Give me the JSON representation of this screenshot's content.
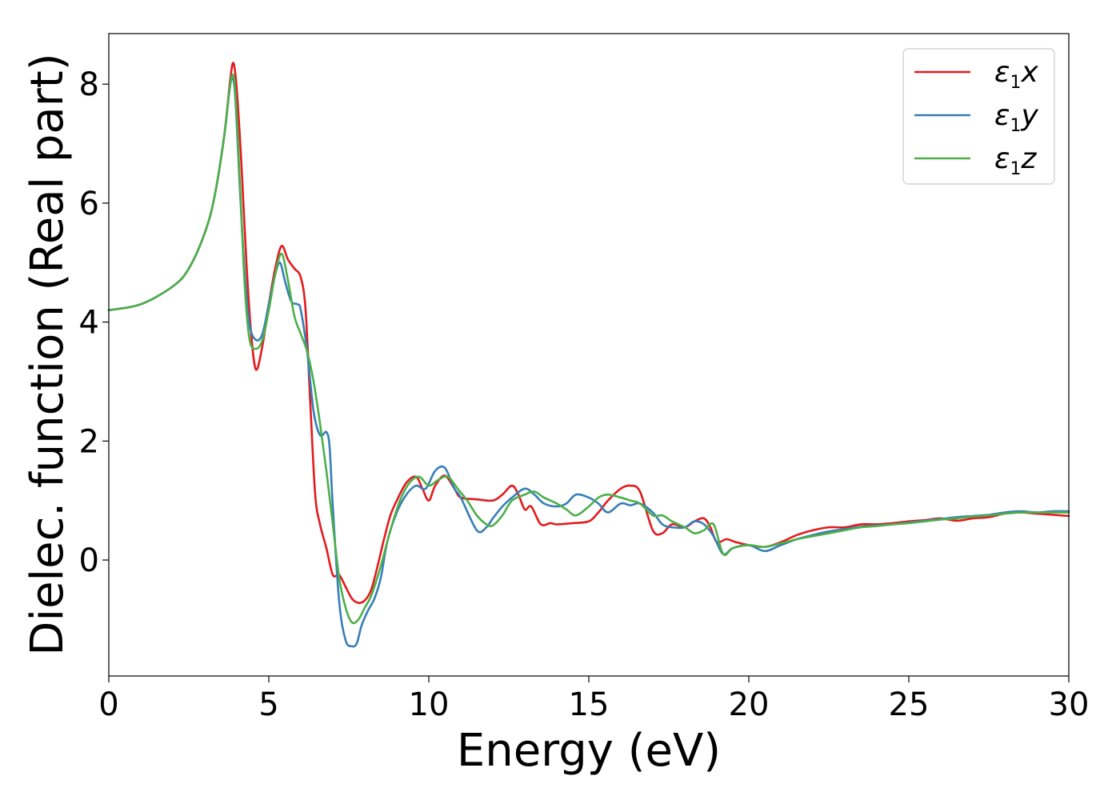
{
  "chart_data": {
    "type": "line",
    "title": "",
    "xlabel": "Energy (eV)",
    "ylabel": "Dielec. function (Real part)",
    "xlim": [
      0,
      30
    ],
    "ylim": [
      -1.95,
      8.85
    ],
    "xticks": [
      0,
      5,
      10,
      15,
      20,
      25,
      30
    ],
    "yticks": [
      0,
      2,
      4,
      6,
      8
    ],
    "xtick_labels": [
      "0",
      "5",
      "10",
      "15",
      "20",
      "25",
      "30"
    ],
    "ytick_labels": [
      "0",
      "2",
      "4",
      "6",
      "8"
    ],
    "grid": false,
    "legend": "top-right",
    "series": [
      {
        "name": "ε1x",
        "legend_symbol": "ε",
        "legend_sub": "1",
        "legend_var": "x",
        "color": "#e41a1c",
        "x": [
          0,
          1,
          2,
          2.5,
          3,
          3.3,
          3.6,
          3.8,
          3.9,
          4.0,
          4.15,
          4.3,
          4.45,
          4.6,
          4.8,
          5.0,
          5.2,
          5.4,
          5.6,
          5.8,
          6.0,
          6.15,
          6.3,
          6.45,
          6.6,
          6.8,
          7.0,
          7.2,
          7.4,
          7.6,
          7.8,
          8.0,
          8.2,
          8.4,
          8.6,
          8.8,
          9.0,
          9.3,
          9.6,
          9.8,
          10.0,
          10.2,
          10.5,
          10.8,
          11.0,
          11.5,
          12.0,
          12.3,
          12.6,
          12.8,
          13.0,
          13.2,
          13.5,
          13.8,
          14.0,
          14.5,
          15.0,
          15.3,
          15.6,
          16.0,
          16.3,
          16.6,
          17.0,
          17.3,
          17.6,
          18.0,
          18.3,
          18.6,
          18.8,
          19.0,
          19.3,
          19.6,
          20.0,
          20.5,
          21.0,
          21.5,
          22.0,
          22.5,
          23.0,
          23.5,
          24.0,
          24.5,
          25.0,
          25.5,
          26.0,
          26.5,
          27.0,
          27.5,
          28.0,
          28.5,
          29.0,
          29.5,
          30.0
        ],
        "y": [
          4.2,
          4.3,
          4.6,
          4.9,
          5.5,
          6.1,
          7.1,
          8.1,
          8.35,
          7.9,
          6.6,
          5.0,
          3.8,
          3.2,
          3.6,
          4.3,
          4.9,
          5.28,
          5.05,
          4.9,
          4.75,
          4.2,
          2.6,
          1.1,
          0.6,
          0.2,
          -0.25,
          -0.25,
          -0.45,
          -0.65,
          -0.72,
          -0.68,
          -0.5,
          -0.1,
          0.35,
          0.75,
          1.0,
          1.3,
          1.4,
          1.2,
          1.0,
          1.25,
          1.42,
          1.2,
          1.05,
          1.02,
          1.0,
          1.1,
          1.25,
          1.1,
          0.85,
          0.9,
          0.6,
          0.62,
          0.6,
          0.62,
          0.65,
          0.8,
          1.0,
          1.2,
          1.25,
          1.15,
          0.5,
          0.45,
          0.6,
          0.55,
          0.65,
          0.7,
          0.55,
          0.3,
          0.35,
          0.3,
          0.25,
          0.22,
          0.3,
          0.42,
          0.5,
          0.55,
          0.55,
          0.6,
          0.6,
          0.62,
          0.65,
          0.67,
          0.7,
          0.66,
          0.7,
          0.72,
          0.78,
          0.8,
          0.78,
          0.76,
          0.74
        ]
      },
      {
        "name": "ε1y",
        "legend_symbol": "ε",
        "legend_sub": "1",
        "legend_var": "y",
        "color": "#377eb8",
        "x": [
          0,
          1,
          2,
          2.5,
          3,
          3.3,
          3.6,
          3.75,
          3.85,
          3.95,
          4.1,
          4.25,
          4.4,
          4.6,
          4.8,
          5.0,
          5.2,
          5.35,
          5.5,
          5.7,
          5.9,
          6.0,
          6.2,
          6.4,
          6.6,
          6.8,
          6.9,
          7.0,
          7.2,
          7.4,
          7.6,
          7.75,
          7.9,
          8.1,
          8.3,
          8.5,
          8.7,
          9.0,
          9.3,
          9.6,
          9.9,
          10.2,
          10.5,
          10.8,
          11.0,
          11.5,
          11.8,
          12.0,
          12.3,
          12.6,
          13.0,
          13.3,
          13.6,
          14.0,
          14.3,
          14.6,
          15.0,
          15.3,
          15.6,
          16.0,
          16.3,
          16.6,
          17.0,
          17.3,
          17.6,
          18.0,
          18.3,
          18.6,
          18.9,
          19.2,
          19.5,
          20.0,
          20.5,
          21.0,
          21.5,
          22.0,
          22.5,
          23.0,
          23.5,
          24.0,
          24.5,
          25.0,
          25.5,
          26.0,
          26.5,
          27.0,
          27.5,
          28.0,
          28.5,
          29.0,
          29.5,
          30.0
        ],
        "y": [
          4.2,
          4.3,
          4.6,
          4.9,
          5.5,
          6.1,
          7.1,
          7.8,
          8.1,
          7.8,
          6.2,
          4.8,
          3.95,
          3.7,
          3.8,
          4.3,
          4.8,
          5.0,
          4.7,
          4.35,
          4.3,
          4.2,
          3.5,
          2.5,
          2.1,
          2.15,
          1.9,
          0.9,
          -0.7,
          -1.35,
          -1.45,
          -1.4,
          -1.1,
          -0.85,
          -0.65,
          -0.3,
          0.3,
          0.8,
          1.1,
          1.25,
          1.2,
          1.5,
          1.55,
          1.2,
          1.05,
          0.5,
          0.55,
          0.7,
          0.9,
          1.05,
          1.2,
          1.1,
          0.95,
          0.9,
          0.95,
          1.1,
          1.05,
          0.95,
          0.8,
          0.95,
          0.92,
          0.95,
          0.8,
          0.6,
          0.55,
          0.55,
          0.65,
          0.6,
          0.4,
          0.1,
          0.2,
          0.25,
          0.15,
          0.25,
          0.35,
          0.42,
          0.48,
          0.52,
          0.56,
          0.58,
          0.6,
          0.63,
          0.66,
          0.69,
          0.72,
          0.74,
          0.76,
          0.8,
          0.82,
          0.8,
          0.82,
          0.82
        ]
      },
      {
        "name": "ε1z",
        "legend_symbol": "ε",
        "legend_sub": "1",
        "legend_var": "z",
        "color": "#4daf4a",
        "x": [
          0,
          1,
          2,
          2.5,
          3,
          3.3,
          3.6,
          3.75,
          3.85,
          3.95,
          4.1,
          4.25,
          4.4,
          4.6,
          4.8,
          5.0,
          5.2,
          5.4,
          5.6,
          5.8,
          6.0,
          6.2,
          6.4,
          6.6,
          6.8,
          7.0,
          7.2,
          7.4,
          7.6,
          7.8,
          8.0,
          8.2,
          8.5,
          8.8,
          9.1,
          9.4,
          9.7,
          10.0,
          10.3,
          10.6,
          10.9,
          11.2,
          11.5,
          11.8,
          12.0,
          12.3,
          12.6,
          13.0,
          13.3,
          13.6,
          14.0,
          14.3,
          14.6,
          15.0,
          15.3,
          15.6,
          16.0,
          16.3,
          16.6,
          17.0,
          17.3,
          17.6,
          18.0,
          18.3,
          18.6,
          18.9,
          19.2,
          19.5,
          20.0,
          20.5,
          21.0,
          21.5,
          22.0,
          22.5,
          23.0,
          23.5,
          24.0,
          24.5,
          25.0,
          25.5,
          26.0,
          26.5,
          27.0,
          27.5,
          28.0,
          28.5,
          29.0,
          29.5,
          30.0
        ],
        "y": [
          4.2,
          4.3,
          4.6,
          4.9,
          5.5,
          6.1,
          7.1,
          7.8,
          8.15,
          7.9,
          6.3,
          4.6,
          3.7,
          3.55,
          3.7,
          4.2,
          4.8,
          5.15,
          4.7,
          4.1,
          3.8,
          3.5,
          3.0,
          2.3,
          1.5,
          0.6,
          -0.3,
          -0.8,
          -1.05,
          -1.0,
          -0.8,
          -0.6,
          -0.1,
          0.5,
          1.0,
          1.3,
          1.4,
          1.25,
          1.35,
          1.4,
          1.2,
          1.0,
          0.75,
          0.6,
          0.58,
          0.75,
          1.0,
          1.1,
          1.15,
          1.05,
          0.95,
          0.85,
          0.75,
          0.9,
          1.05,
          1.1,
          1.05,
          1.0,
          0.95,
          0.75,
          0.75,
          0.65,
          0.55,
          0.45,
          0.5,
          0.6,
          0.1,
          0.2,
          0.25,
          0.22,
          0.28,
          0.35,
          0.4,
          0.45,
          0.5,
          0.55,
          0.57,
          0.6,
          0.62,
          0.65,
          0.68,
          0.7,
          0.73,
          0.75,
          0.78,
          0.8,
          0.8,
          0.8,
          0.8
        ]
      }
    ]
  }
}
